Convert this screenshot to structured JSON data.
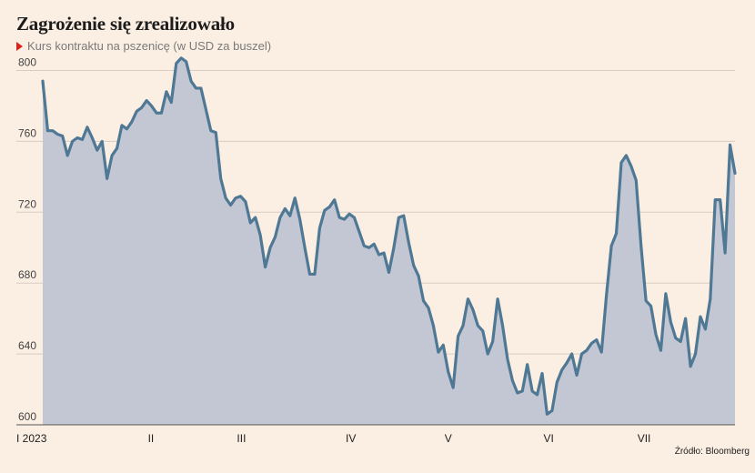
{
  "title": "Zagrożenie się zrealizowało",
  "subtitle": "Kurs kontraktu na pszenicę (w USD za buszel)",
  "source": "Źródło: Bloomberg",
  "colors": {
    "line": "#4f7894",
    "fill": "#c3c7d4",
    "grid": "#d7cdc4",
    "background": "#fbeee2",
    "marker": "#d9241c"
  },
  "chart_data": {
    "type": "area",
    "title": "Zagrożenie się zrealizowało",
    "subtitle": "Kurs kontraktu na pszenicę (w USD za buszel)",
    "xlabel": "",
    "ylabel": "",
    "ylim": [
      600,
      810
    ],
    "yticks": [
      600,
      640,
      680,
      720,
      760,
      800
    ],
    "xticks": [
      {
        "label": "I 2023",
        "index": 0
      },
      {
        "label": "II",
        "index": 22
      },
      {
        "label": "III",
        "index": 40
      },
      {
        "label": "IV",
        "index": 62
      },
      {
        "label": "V",
        "index": 82
      },
      {
        "label": "VI",
        "index": 102
      },
      {
        "label": "VII",
        "index": 121
      }
    ],
    "grid": true,
    "series": [
      {
        "values": [
          794,
          766,
          766,
          764,
          763,
          752,
          760,
          762,
          761,
          768,
          762,
          755,
          760,
          739,
          752,
          756,
          769,
          767,
          771,
          777,
          779,
          783,
          780,
          776,
          776,
          788,
          782,
          804,
          807,
          805,
          794,
          790,
          790,
          778,
          766,
          765,
          739,
          728,
          724,
          728,
          729,
          726,
          714,
          717,
          707,
          689,
          700,
          706,
          717,
          722,
          718,
          728,
          716,
          700,
          685,
          685,
          711,
          721,
          723,
          727,
          717,
          716,
          719,
          717,
          709,
          701,
          700,
          702,
          696,
          697,
          686,
          700,
          717,
          718,
          703,
          690,
          684,
          670,
          666,
          656,
          641,
          645,
          630,
          621,
          650,
          656,
          671,
          665,
          656,
          653,
          640,
          647,
          671,
          656,
          637,
          625,
          618,
          619,
          634,
          619,
          617,
          629,
          606,
          608,
          624,
          631,
          635,
          640,
          628,
          640,
          642,
          646,
          648,
          641,
          673,
          701,
          708,
          748,
          752,
          746,
          738,
          701,
          670,
          667,
          651,
          642,
          674,
          658,
          649,
          647,
          660,
          633,
          640,
          661,
          654,
          671,
          727,
          727,
          697,
          758,
          742
        ]
      }
    ]
  }
}
